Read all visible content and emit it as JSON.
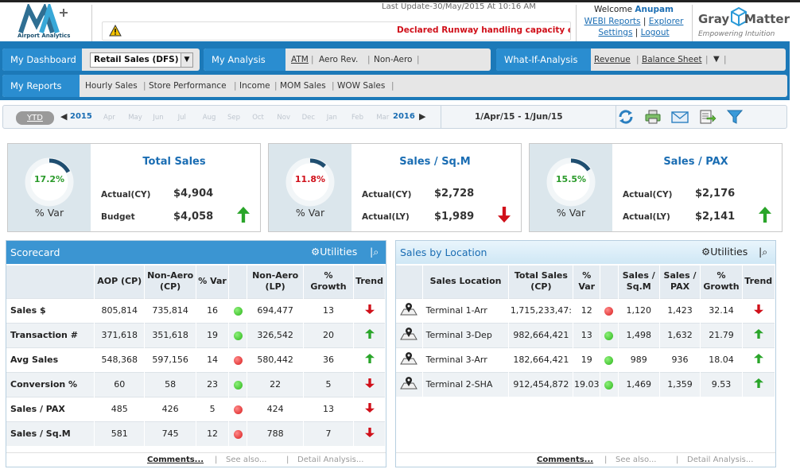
{
  "header": {
    "logo_text": "Airport Analytics",
    "last_update": "Last Update-30/May/2015 At 10:16 AM",
    "alert": "Declared Runway handling capacity ex",
    "welcome_label": "Welcome",
    "user": "Anupam",
    "links": [
      "WEBI Reports",
      "Explorer",
      "Settings",
      "Logout"
    ],
    "brand_1": "Gray",
    "brand_2": "Matter",
    "brand_tagline": "Empowering Intuition"
  },
  "nav": {
    "dashboard_label": "My Dashboard",
    "dashboard_select": "Retail Sales (DFS)",
    "analysis_label": "My Analysis",
    "analysis_links": [
      "ATM",
      "Aero Rev.",
      "Non-Aero"
    ],
    "whatif_label": "What-If-Analysis",
    "whatif_links": [
      "Revenue",
      "Balance Sheet"
    ],
    "reports_label": "My Reports",
    "report_links": [
      "Hourly Sales",
      "Store Performance",
      "Income",
      "MOM Sales",
      "WOW Sales"
    ]
  },
  "timeline": {
    "ytd": "YTD",
    "start_year": "2015",
    "months": [
      "Apr",
      "May",
      "Jun",
      "Jul",
      "Aug",
      "Sep",
      "Oct",
      "Nov",
      "Dec",
      "Jan",
      "Feb",
      "Mar"
    ],
    "end_year": "2016",
    "range": "1/Apr/15 - 1/Jun/15"
  },
  "kpis": [
    {
      "title": "Total Sales",
      "pct": "17.2%",
      "pct_value": 0.172,
      "pct_color": "#2a9a2a",
      "var_label": "% Var",
      "label1": "Actual(CY)",
      "value1": "$4,904",
      "label2": "Budget",
      "value2": "$4,058",
      "trend": "up"
    },
    {
      "title": "Sales / Sq.M",
      "pct": "11.8%",
      "pct_value": 0.118,
      "pct_color": "#d0101a",
      "var_label": "% Var",
      "label1": "Actual(CY)",
      "value1": "$2,728",
      "label2": "Actual(LY)",
      "value2": "$1,989",
      "trend": "down"
    },
    {
      "title": "Sales / PAX",
      "pct": "15.5%",
      "pct_value": 0.155,
      "pct_color": "#2a9a2a",
      "var_label": "% Var",
      "label1": "Actual(CY)",
      "value1": "$2,176",
      "label2": "Actual(LY)",
      "value2": "$2,141",
      "trend": "up"
    }
  ],
  "scorecard": {
    "title": "Scorecard",
    "utilities": "Utilities",
    "columns": [
      "",
      "AOP (CP)",
      "Non-Aero (CP)",
      "% Var",
      "",
      "Non-Aero (LP)",
      "% Growth",
      "Trend"
    ],
    "rows": [
      {
        "metric": "Sales $",
        "aop": "805,814",
        "nonaero_cp": "735,814",
        "var": "16",
        "status": "g",
        "nonaero_lp": "694,477",
        "growth": "13",
        "trend": "down"
      },
      {
        "metric": "Transaction #",
        "aop": "371,618",
        "nonaero_cp": "351,618",
        "var": "19",
        "status": "g",
        "nonaero_lp": "326,542",
        "growth": "20",
        "trend": "up"
      },
      {
        "metric": "Avg Sales",
        "aop": "548,368",
        "nonaero_cp": "597,156",
        "var": "14",
        "status": "r",
        "nonaero_lp": "580,442",
        "growth": "36",
        "trend": "up"
      },
      {
        "metric": "Conversion %",
        "aop": "60",
        "nonaero_cp": "58",
        "var": "23",
        "status": "g",
        "nonaero_lp": "22",
        "growth": "5",
        "trend": "down"
      },
      {
        "metric": "Sales / PAX",
        "aop": "485",
        "nonaero_cp": "426",
        "var": "5",
        "status": "r",
        "nonaero_lp": "424",
        "growth": "13",
        "trend": "down"
      },
      {
        "metric": "Sales / Sq.M",
        "aop": "581",
        "nonaero_cp": "745",
        "var": "12",
        "status": "r",
        "nonaero_lp": "788",
        "growth": "7",
        "trend": "down"
      }
    ],
    "footer": [
      "Comments...",
      "See also...",
      "Detail Analysis..."
    ]
  },
  "location": {
    "title": "Sales by Location",
    "utilities": "Utilities",
    "columns": [
      "",
      "Sales Location",
      "Total Sales (CP)",
      "% Var",
      "",
      "Sales / Sq.M",
      "Sales / PAX",
      "% Growth",
      "Trend"
    ],
    "rows": [
      {
        "location": "Terminal 1-Arr",
        "total": "1,715,233,47:",
        "var": "12",
        "status": "r",
        "sqm": "1,120",
        "pax": "1,423",
        "growth": "32.14",
        "trend": "down"
      },
      {
        "location": "Terminal 3-Dep",
        "total": "982,664,421",
        "var": "13",
        "status": "g",
        "sqm": "1,498",
        "pax": "1,632",
        "growth": "21.79",
        "trend": "up"
      },
      {
        "location": "Terminal 3-Arr",
        "total": "182,664,421",
        "var": "19",
        "status": "g",
        "sqm": "989",
        "pax": "936",
        "growth": "18.04",
        "trend": "up"
      },
      {
        "location": "Terminal 2-SHA",
        "total": "912,454,872",
        "var": "19.03",
        "status": "g",
        "sqm": "1,469",
        "pax": "1,359",
        "growth": "9.53",
        "trend": "up"
      }
    ],
    "footer": [
      "Comments...",
      "See also...",
      "Detail Analysis..."
    ]
  }
}
